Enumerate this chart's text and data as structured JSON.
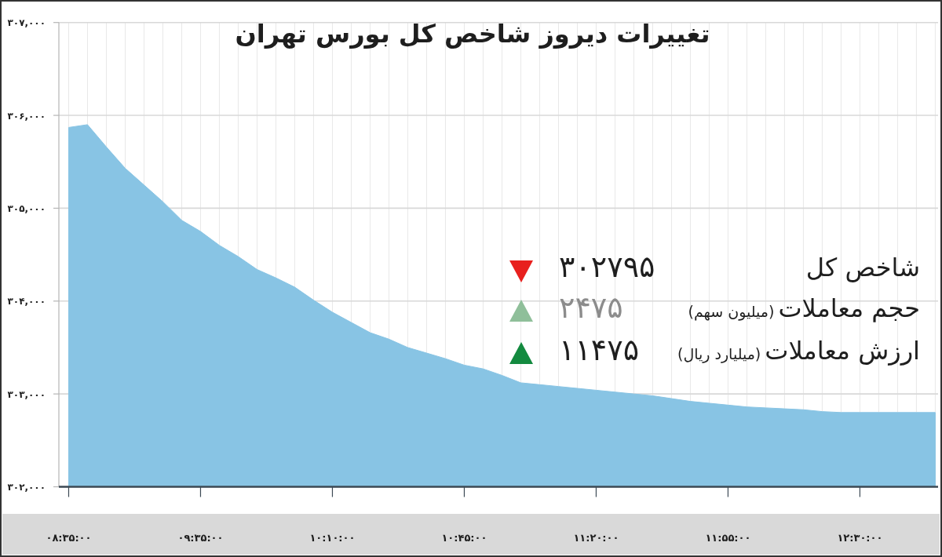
{
  "chart_data": {
    "type": "area",
    "title": "تغییرات دیروز شاخص کل بورس تهران",
    "categories": [
      "۰۸:۳۵:۰۰",
      null,
      null,
      null,
      null,
      null,
      null,
      "۰۹:۳۵:۰۰",
      null,
      null,
      null,
      null,
      null,
      null,
      "۱۰:۱۰:۰۰",
      null,
      null,
      null,
      null,
      null,
      null,
      "۱۰:۴۵:۰۰",
      null,
      null,
      null,
      null,
      null,
      null,
      "۱۱:۲۰:۰۰",
      null,
      null,
      null,
      null,
      null,
      null,
      "۱۱:۵۵:۰۰",
      null,
      null,
      null,
      null,
      null,
      null,
      "۱۲:۳۰:۰۰",
      null,
      null,
      null,
      null
    ],
    "values": [
      305870,
      305900,
      305660,
      305430,
      305250,
      305070,
      304870,
      304750,
      304600,
      304480,
      304340,
      304250,
      304150,
      304010,
      303880,
      303770,
      303660,
      303590,
      303500,
      303440,
      303380,
      303310,
      303270,
      303200,
      303120,
      303100,
      303080,
      303060,
      303040,
      303020,
      303000,
      302980,
      302950,
      302920,
      302900,
      302880,
      302860,
      302850,
      302840,
      302830,
      302810,
      302800,
      302800,
      302800,
      302800,
      302800,
      302800
    ],
    "color": "#88c4e4",
    "ylim": [
      302000,
      307000
    ],
    "yticks": [
      {
        "value": 302000,
        "label": "۳۰۲,۰۰۰"
      },
      {
        "value": 303000,
        "label": "۳۰۳,۰۰۰"
      },
      {
        "value": 304000,
        "label": "۳۰۴,۰۰۰"
      },
      {
        "value": 305000,
        "label": "۳۰۵,۰۰۰"
      },
      {
        "value": 306000,
        "label": "۳۰۶,۰۰۰"
      },
      {
        "value": 307000,
        "label": "۳۰۷,۰۰۰"
      }
    ],
    "grid": true,
    "annotations": [
      "شاخص کل",
      "۳۰۲۷۹۵",
      "حجم معاملات",
      "(میلیون سهم)",
      "۲۴۷۵",
      "ارزش معاملات",
      "(میلیارد ریال)",
      "۱۱۴۷۵"
    ]
  }
}
